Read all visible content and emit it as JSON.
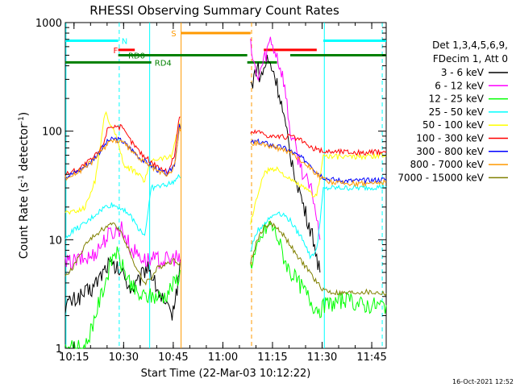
{
  "chart_data": {
    "type": "line",
    "title": "RHESSI Observing Summary Count Rates",
    "xlabel": "Start Time (22-Mar-03 10:12:22)",
    "ylabel_main": "Count Rate (s",
    "ylabel_sup1": "-1",
    "ylabel_mid": " detector",
    "ylabel_sup2": "-1",
    "ylabel_end": ")",
    "x_unit": "minutes since 10:12:22",
    "xlim": [
      0,
      97
    ],
    "ylim": [
      1,
      1000
    ],
    "yscale": "log",
    "x_ticks": [
      {
        "label": "10:15",
        "value": 2.63
      },
      {
        "label": "10:30",
        "value": 17.63
      },
      {
        "label": "10:45",
        "value": 32.63
      },
      {
        "label": "11:00",
        "value": 47.63
      },
      {
        "label": "11:15",
        "value": 62.63
      },
      {
        "label": "11:30",
        "value": 77.63
      },
      {
        "label": "11:45",
        "value": 92.63
      }
    ],
    "y_ticks": [
      {
        "label": "1",
        "value": 1
      },
      {
        "label": "10",
        "value": 10
      },
      {
        "label": "100",
        "value": 100
      },
      {
        "label": "1000",
        "value": 1000
      }
    ],
    "legend": {
      "header1": "Det 1,3,4,5,6,9,",
      "header2": "FDecim 1, Att 0",
      "position": "right"
    },
    "series": [
      {
        "name": "3 - 6 keV",
        "color": "#000000",
        "x": [
          0,
          8,
          13,
          17,
          20,
          22,
          25,
          27,
          30,
          32,
          33.5,
          35,
          56,
          58,
          59,
          61,
          63,
          65,
          68,
          72,
          75,
          77
        ],
        "y": [
          2.5,
          3.5,
          6,
          5,
          3.5,
          4,
          6,
          4,
          2.5,
          2,
          3,
          8,
          250,
          400,
          300,
          450,
          350,
          200,
          60,
          20,
          10,
          5
        ]
      },
      {
        "name": "6 - 12 keV",
        "color": "#ff00ff",
        "x": [
          0,
          8,
          13,
          17,
          20,
          22,
          24,
          27,
          30,
          32,
          33.5,
          35,
          56,
          58,
          60,
          62,
          64,
          66,
          68,
          72,
          75,
          77
        ],
        "y": [
          6,
          7,
          11,
          13,
          8,
          7.5,
          6.5,
          6.5,
          6.5,
          6.5,
          7,
          6,
          600,
          300,
          450,
          700,
          500,
          300,
          100,
          40,
          25,
          10
        ]
      },
      {
        "name": "12 - 25 keV",
        "color": "#00ff00",
        "x": [
          0,
          6,
          9,
          12,
          15,
          18,
          22,
          26,
          30,
          33,
          35,
          56,
          58,
          60,
          62,
          64,
          66,
          68,
          72,
          75,
          77,
          79,
          84,
          90,
          97
        ],
        "y": [
          1,
          1,
          2,
          4,
          8,
          5,
          3,
          3,
          3,
          4,
          5,
          6,
          8,
          12,
          14,
          11,
          7,
          5,
          3.5,
          2.5,
          2.3,
          2.5,
          2.8,
          2.5,
          2.5
        ]
      },
      {
        "name": "25 - 50 keV",
        "color": "#00ffff",
        "x": [
          0,
          2,
          6,
          9,
          12,
          14,
          16,
          18,
          20,
          22,
          24,
          26,
          28,
          30,
          32,
          34.5,
          35,
          56,
          58,
          60,
          62,
          64,
          66,
          68,
          70,
          72,
          74,
          76,
          78,
          80,
          84,
          90,
          97
        ],
        "y": [
          10,
          12,
          14,
          17,
          20,
          21,
          20,
          19,
          16,
          13,
          11,
          30,
          31,
          32,
          33,
          38,
          36,
          8,
          12,
          14,
          16,
          18,
          17,
          15,
          12,
          10,
          7,
          8,
          29,
          30,
          30,
          30,
          31
        ]
      },
      {
        "name": "50 - 100 keV",
        "color": "#ffff00",
        "x": [
          0,
          3,
          6,
          9,
          11,
          12,
          14,
          16,
          18,
          20,
          22,
          24,
          26,
          28,
          30,
          32,
          34.5,
          35,
          56,
          58,
          60,
          62,
          64,
          66,
          68,
          70,
          72,
          74,
          76,
          78,
          80,
          84,
          90,
          97
        ],
        "y": [
          18,
          18,
          20,
          35,
          90,
          150,
          110,
          80,
          45,
          45,
          40,
          35,
          55,
          56,
          57,
          58,
          120,
          100,
          14,
          25,
          40,
          45,
          45,
          40,
          35,
          33,
          30,
          27,
          25,
          60,
          58,
          58,
          58,
          60
        ]
      },
      {
        "name": "100 - 300 keV",
        "color": "#ff0000",
        "x": [
          0,
          4,
          8,
          11,
          13,
          15,
          17,
          20,
          23,
          26,
          29,
          31,
          33,
          34.5,
          35,
          56,
          58,
          60,
          62,
          64,
          66,
          68,
          70,
          72,
          74,
          76,
          78,
          80,
          84,
          90,
          97
        ],
        "y": [
          40,
          45,
          55,
          70,
          110,
          112,
          108,
          80,
          62,
          52,
          45,
          42,
          60,
          140,
          130,
          95,
          100,
          95,
          90,
          90,
          88,
          90,
          85,
          80,
          70,
          68,
          65,
          65,
          65,
          63,
          65
        ]
      },
      {
        "name": "300 - 800 keV",
        "color": "#0000ff",
        "x": [
          0,
          4,
          8,
          11,
          13,
          15,
          17,
          20,
          23,
          26,
          29,
          31,
          33,
          34.5,
          35,
          56,
          58,
          60,
          62,
          64,
          66,
          68,
          70,
          72,
          74,
          76,
          78,
          80,
          84,
          90,
          97
        ],
        "y": [
          38,
          43,
          53,
          68,
          82,
          85,
          82,
          68,
          55,
          48,
          42,
          40,
          50,
          110,
          100,
          78,
          80,
          78,
          75,
          72,
          70,
          66,
          60,
          55,
          50,
          42,
          38,
          36,
          35,
          35,
          36
        ]
      },
      {
        "name": "800 - 7000 keV",
        "color": "#ff9900",
        "x": [
          0,
          4,
          8,
          11,
          13,
          15,
          17,
          20,
          23,
          26,
          29,
          31,
          33,
          34.5,
          35,
          56,
          58,
          60,
          62,
          64,
          66,
          68,
          70,
          72,
          74,
          76,
          78,
          80,
          84,
          90,
          97
        ],
        "y": [
          37,
          42,
          52,
          65,
          80,
          82,
          80,
          66,
          54,
          47,
          41,
          39,
          48,
          105,
          95,
          76,
          78,
          76,
          73,
          70,
          68,
          64,
          58,
          52,
          47,
          40,
          36,
          34,
          33,
          33,
          34
        ]
      },
      {
        "name": "7000 - 15000 keV",
        "color": "#808000",
        "x": [
          0,
          3,
          6,
          9,
          12,
          14,
          16,
          18,
          20,
          22,
          24,
          26,
          28,
          30,
          33,
          35,
          56,
          58,
          60,
          62,
          64,
          66,
          68,
          70,
          72,
          74,
          76,
          78,
          80,
          84,
          90,
          97
        ],
        "y": [
          4.5,
          6,
          9,
          11,
          13,
          14,
          13,
          10,
          7,
          5,
          4,
          4.5,
          5.5,
          6,
          6.5,
          6,
          6,
          10,
          13,
          14,
          13,
          11,
          9,
          7,
          6,
          5,
          4,
          3.5,
          3.3,
          3.2,
          3.3,
          3.2
        ]
      }
    ],
    "flag_bars": [
      {
        "label": "N",
        "color": "#00ffff",
        "segments": [
          [
            0,
            16
          ],
          [
            78,
            97
          ]
        ],
        "value": 680,
        "label_x": 17
      },
      {
        "label": "F",
        "color": "#ff0000",
        "segments": [
          [
            16,
            21
          ],
          [
            60,
            76
          ]
        ],
        "value": 560,
        "label_x": 14.5
      },
      {
        "label": "RD0",
        "color": "#008000",
        "segments": [
          [
            16,
            55
          ],
          [
            68,
            97
          ]
        ],
        "value": 500,
        "label_x": 19
      },
      {
        "label": "RD4",
        "color": "#008000",
        "segments": [
          [
            0,
            26
          ],
          [
            55,
            64
          ]
        ],
        "value": 430,
        "label_x": 27
      },
      {
        "label": "S",
        "color": "#ff9900",
        "segments": [
          [
            35,
            56
          ]
        ],
        "value": 800,
        "label_x": 32
      }
    ],
    "vlines": [
      {
        "x": 0.2,
        "color": "#00ffff",
        "style": "solid"
      },
      {
        "x": 16.3,
        "color": "#00ffff",
        "style": "dashed"
      },
      {
        "x": 25.5,
        "color": "#00ffff",
        "style": "solid"
      },
      {
        "x": 35.0,
        "color": "#ff9900",
        "style": "solid"
      },
      {
        "x": 56.3,
        "color": "#ff9900",
        "style": "dashed"
      },
      {
        "x": 78.3,
        "color": "#00ffff",
        "style": "solid"
      },
      {
        "x": 95.8,
        "color": "#00ffff",
        "style": "dashed"
      }
    ]
  },
  "footer": {
    "timestamp": "16-Oct-2021 12:52"
  }
}
